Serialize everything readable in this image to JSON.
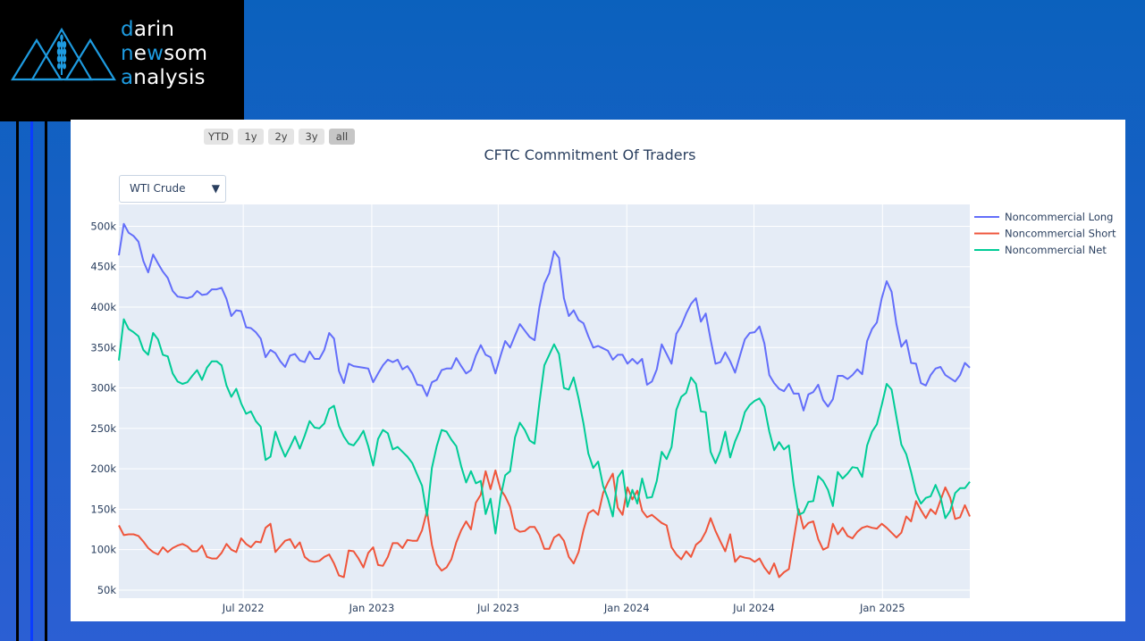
{
  "logo": {
    "line1": {
      "hl": "d",
      "rest": "arin"
    },
    "line2": {
      "hl1": "n",
      "mid": "e",
      "hl2": "w",
      "rest": "som"
    },
    "line3": {
      "hl": "a",
      "rest": "nalysis"
    },
    "accent": "#1e9be0",
    "icon": "mountains-wheat-icon"
  },
  "range_buttons": [
    {
      "label": "YTD",
      "active": false
    },
    {
      "label": "1y",
      "active": false
    },
    {
      "label": "2y",
      "active": false
    },
    {
      "label": "3y",
      "active": false
    },
    {
      "label": "all",
      "active": true
    }
  ],
  "dropdown": {
    "selected": "WTI Crude"
  },
  "chart_data": {
    "type": "line",
    "title": "CFTC Commitment Of Traders",
    "xlabel": "",
    "ylabel": "",
    "x_start": "2022-01-04",
    "x_frequency": "weekly",
    "x_ticks": [
      {
        "date": "2022-07-01",
        "label": "Jul 2022"
      },
      {
        "date": "2023-01-01",
        "label": "Jan 2023"
      },
      {
        "date": "2023-07-01",
        "label": "Jul 2023"
      },
      {
        "date": "2024-01-01",
        "label": "Jan 2024"
      },
      {
        "date": "2024-07-01",
        "label": "Jul 2024"
      },
      {
        "date": "2025-01-01",
        "label": "Jan 2025"
      }
    ],
    "y_ticks": [
      {
        "value": 50000,
        "label": "50k"
      },
      {
        "value": 100000,
        "label": "100k"
      },
      {
        "value": 150000,
        "label": "150k"
      },
      {
        "value": 200000,
        "label": "200k"
      },
      {
        "value": 250000,
        "label": "250k"
      },
      {
        "value": 300000,
        "label": "300k"
      },
      {
        "value": 350000,
        "label": "350k"
      },
      {
        "value": 400000,
        "label": "400k"
      },
      {
        "value": 450000,
        "label": "450k"
      },
      {
        "value": 500000,
        "label": "500k"
      }
    ],
    "ylim": [
      40000,
      527000
    ],
    "value_unit": "thousands of contracts",
    "grid": true,
    "legend_position": "right",
    "series": [
      {
        "name": "Noncommercial Long",
        "color": "#636efa",
        "values": [
          464,
          503,
          492,
          488,
          481,
          457,
          443,
          465,
          454,
          444,
          436,
          420,
          413,
          412,
          411,
          413,
          420,
          415,
          416,
          422,
          422,
          424,
          410,
          389,
          396,
          395,
          375,
          374,
          369,
          361,
          338,
          347,
          343,
          333,
          326,
          340,
          342,
          334,
          332,
          345,
          336,
          336,
          347,
          368,
          361,
          321,
          306,
          330,
          327,
          326,
          325,
          324,
          307,
          318,
          328,
          335,
          332,
          335,
          323,
          327,
          318,
          304,
          303,
          290,
          307,
          310,
          322,
          324,
          324,
          337,
          327,
          318,
          322,
          340,
          353,
          341,
          338,
          318,
          339,
          358,
          350,
          365,
          379,
          371,
          363,
          359,
          400,
          429,
          442,
          469,
          461,
          411,
          389,
          396,
          384,
          380,
          364,
          350,
          352,
          349,
          346,
          335,
          341,
          341,
          330,
          336,
          330,
          336,
          304,
          308,
          323,
          354,
          342,
          330,
          367,
          377,
          392,
          404,
          411,
          382,
          392,
          360,
          330,
          332,
          344,
          333,
          319,
          340,
          360,
          368,
          369,
          376,
          355,
          316,
          306,
          299,
          296,
          305,
          293,
          293,
          272,
          292,
          295,
          304,
          285,
          277,
          286,
          315,
          315,
          311,
          316,
          323,
          317,
          358,
          373,
          381,
          411,
          432,
          419,
          379,
          351,
          359,
          331,
          330,
          306,
          303,
          316,
          324,
          326,
          316,
          312,
          308,
          316,
          331,
          325
        ]
      },
      {
        "name": "Noncommercial Short",
        "color": "#ef553b",
        "values": [
          130,
          118,
          119,
          119,
          117,
          110,
          102,
          97,
          94,
          103,
          97,
          102,
          105,
          107,
          104,
          98,
          98,
          105,
          91,
          89,
          89,
          96,
          107,
          100,
          97,
          114,
          107,
          103,
          110,
          109,
          127,
          132,
          97,
          104,
          111,
          113,
          102,
          109,
          91,
          86,
          85,
          86,
          91,
          94,
          83,
          68,
          66,
          99,
          98,
          89,
          78,
          96,
          103,
          81,
          80,
          91,
          108,
          108,
          102,
          112,
          111,
          111,
          124,
          148,
          106,
          82,
          74,
          78,
          88,
          109,
          124,
          135,
          125,
          158,
          168,
          197,
          175,
          198,
          175,
          166,
          153,
          126,
          122,
          123,
          128,
          128,
          118,
          101,
          101,
          115,
          119,
          111,
          91,
          83,
          97,
          124,
          145,
          149,
          143,
          170,
          183,
          194,
          152,
          143,
          177,
          162,
          173,
          148,
          140,
          143,
          138,
          133,
          130,
          103,
          94,
          88,
          98,
          91,
          106,
          111,
          122,
          139,
          123,
          110,
          98,
          119,
          85,
          92,
          90,
          89,
          85,
          89,
          78,
          70,
          83,
          66,
          72,
          76,
          113,
          150,
          126,
          133,
          135,
          113,
          100,
          103,
          132,
          119,
          127,
          117,
          114,
          122,
          127,
          129,
          127,
          126,
          132,
          127,
          121,
          115,
          121,
          141,
          135,
          160,
          149,
          139,
          150,
          144,
          161,
          177,
          164,
          138,
          140,
          155,
          141
        ]
      },
      {
        "name": "Noncommercial Net",
        "color": "#00cc96",
        "values": [
          334,
          385,
          373,
          369,
          364,
          347,
          341,
          368,
          360,
          341,
          339,
          318,
          308,
          305,
          307,
          315,
          322,
          310,
          325,
          333,
          333,
          328,
          303,
          289,
          299,
          281,
          268,
          271,
          259,
          252,
          211,
          215,
          246,
          229,
          215,
          227,
          240,
          225,
          241,
          259,
          251,
          250,
          256,
          274,
          278,
          253,
          240,
          231,
          229,
          237,
          247,
          228,
          204,
          237,
          248,
          244,
          224,
          227,
          221,
          215,
          207,
          193,
          179,
          142,
          201,
          228,
          248,
          246,
          236,
          228,
          203,
          183,
          197,
          182,
          185,
          144,
          163,
          120,
          164,
          192,
          197,
          239,
          257,
          248,
          235,
          231,
          282,
          328,
          341,
          354,
          342,
          300,
          298,
          313,
          287,
          256,
          219,
          201,
          209,
          179,
          163,
          141,
          189,
          198,
          153,
          174,
          157,
          188,
          164,
          165,
          185,
          221,
          212,
          227,
          273,
          289,
          294,
          313,
          305,
          271,
          270,
          221,
          207,
          222,
          246,
          214,
          234,
          248,
          270,
          279,
          284,
          287,
          277,
          246,
          223,
          233,
          224,
          229,
          180,
          143,
          146,
          159,
          160,
          191,
          185,
          174,
          154,
          196,
          188,
          194,
          202,
          201,
          190,
          229,
          246,
          255,
          279,
          305,
          298,
          264,
          230,
          218,
          196,
          170,
          157,
          164,
          166,
          180,
          165,
          139,
          148,
          170,
          176,
          176,
          184
        ]
      }
    ]
  }
}
